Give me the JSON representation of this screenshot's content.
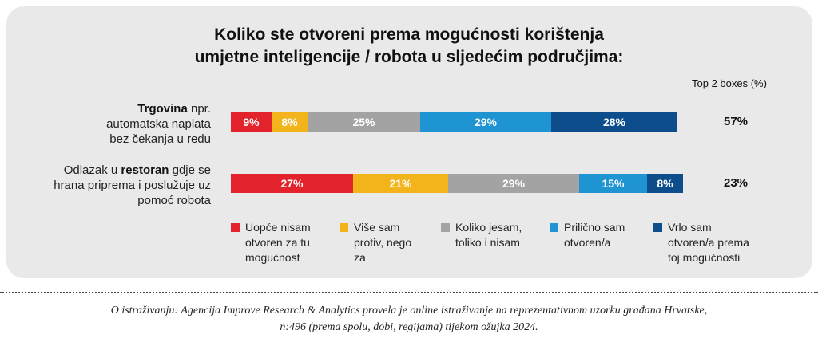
{
  "chart_data": {
    "type": "bar",
    "orientation": "horizontal-stacked-100",
    "title": [
      "Koliko ste otvoreni prema mogućnosti korištenja",
      "umjetne inteligencije / robota u sljedećim područjima:"
    ],
    "top2_header": "Top 2 boxes (%)",
    "categories": [
      {
        "lines": [
          [
            {
              "t": "Trgovina",
              "b": true
            },
            {
              "t": " npr.",
              "b": false
            }
          ],
          [
            {
              "t": "automatska naplata",
              "b": false
            }
          ],
          [
            {
              "t": "bez čekanja u redu",
              "b": false
            }
          ]
        ],
        "top2": "57%"
      },
      {
        "lines": [
          [
            {
              "t": "Odlazak u ",
              "b": false
            },
            {
              "t": "restoran",
              "b": true
            },
            {
              "t": " gdje se",
              "b": false
            }
          ],
          [
            {
              "t": "hrana priprema i poslužuje uz",
              "b": false
            }
          ],
          [
            {
              "t": "pomoć robota",
              "b": false
            }
          ]
        ],
        "top2": "23%"
      }
    ],
    "series": [
      {
        "name": [
          "Uopće nisam",
          "otvoren za tu",
          "mogućnost"
        ],
        "color": "#e3232b",
        "values": [
          9,
          27
        ]
      },
      {
        "name": [
          "Više sam",
          "protiv, nego",
          "za"
        ],
        "color": "#f2b31b",
        "values": [
          8,
          21
        ]
      },
      {
        "name": [
          "Koliko jesam,",
          "toliko i nisam"
        ],
        "color": "#a3a3a3",
        "values": [
          25,
          29
        ]
      },
      {
        "name": [
          "Prilično sam",
          "otvoren/a"
        ],
        "color": "#1e94d2",
        "values": [
          29,
          15
        ]
      },
      {
        "name": [
          "Vrlo sam",
          "otvoren/a prema",
          "toj mogućnosti"
        ],
        "color": "#0d4d8c",
        "values": [
          28,
          8
        ]
      }
    ],
    "value_suffix": "%"
  },
  "footnote": [
    "O istraživanju: Agencija Improve Research & Analytics provela je online istraživanje na reprezentativnom uzorku građana Hrvatske,",
    "n:496 (prema spolu, dobi, regijama) tijekom ožujka 2024."
  ]
}
